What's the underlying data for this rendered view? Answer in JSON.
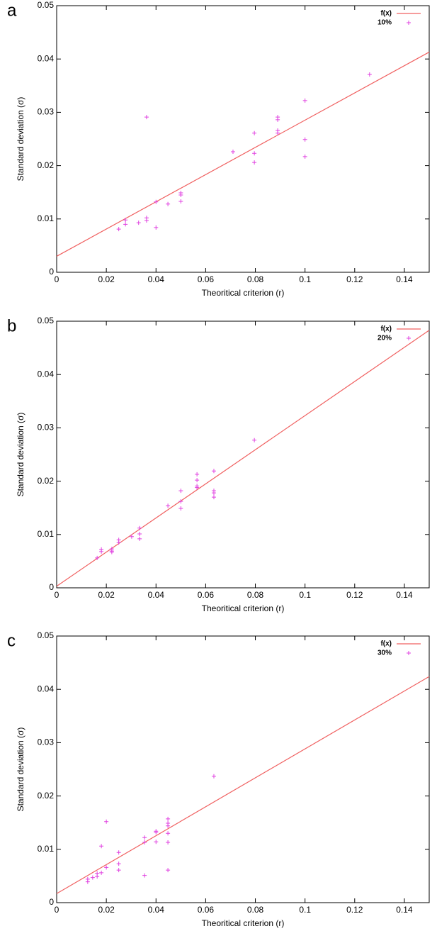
{
  "chart_data": [
    {
      "type": "scatter",
      "panel_label": "a",
      "x_label": "Theoritical criterion (r)",
      "y_label": "Standard deviation (σ)",
      "xlim": [
        0,
        0.15
      ],
      "ylim": [
        0,
        0.05
      ],
      "xticks": [
        0,
        0.02,
        0.04,
        0.06,
        0.08,
        0.1,
        0.12,
        0.14
      ],
      "yticks": [
        0,
        0.01,
        0.02,
        0.03,
        0.04,
        0.05
      ],
      "legend": "top-right",
      "series": [
        {
          "name": "f(x)",
          "color": "#f06060",
          "mode": "line",
          "x": [
            0,
            0.15
          ],
          "values": [
            0.003,
            0.0413
          ]
        },
        {
          "name": "10%",
          "color": "#e040e0",
          "mode": "markers",
          "x": [
            0.025,
            0.0277,
            0.0277,
            0.033,
            0.0362,
            0.0362,
            0.0362,
            0.04,
            0.04,
            0.0448,
            0.05,
            0.05,
            0.05,
            0.071,
            0.0796,
            0.0796,
            0.0796,
            0.089,
            0.089,
            0.089,
            0.089,
            0.1,
            0.1,
            0.1,
            0.126
          ],
          "values": [
            0.0081,
            0.009,
            0.0098,
            0.0093,
            0.0102,
            0.0097,
            0.0291,
            0.0132,
            0.0084,
            0.0128,
            0.0149,
            0.0145,
            0.0133,
            0.0226,
            0.0261,
            0.0223,
            0.0206,
            0.0291,
            0.0286,
            0.0266,
            0.0261,
            0.0322,
            0.0249,
            0.0217,
            0.0371
          ]
        }
      ]
    },
    {
      "type": "scatter",
      "panel_label": "b",
      "x_label": "Theoritical criterion (r)",
      "y_label": "Standard deviation (σ)",
      "xlim": [
        0,
        0.15
      ],
      "ylim": [
        0,
        0.05
      ],
      "xticks": [
        0,
        0.02,
        0.04,
        0.06,
        0.08,
        0.1,
        0.12,
        0.14
      ],
      "yticks": [
        0,
        0.01,
        0.02,
        0.03,
        0.04,
        0.05
      ],
      "legend": "top-right",
      "series": [
        {
          "name": "f(x)",
          "color": "#f06060",
          "mode": "line",
          "x": [
            0,
            0.15
          ],
          "values": [
            0.0003,
            0.0483
          ]
        },
        {
          "name": "20%",
          "color": "#e040e0",
          "mode": "markers",
          "x": [
            0.0163,
            0.018,
            0.018,
            0.0222,
            0.0222,
            0.0222,
            0.025,
            0.025,
            0.0302,
            0.0334,
            0.0334,
            0.0334,
            0.0448,
            0.05,
            0.05,
            0.05,
            0.0565,
            0.0565,
            0.0565,
            0.0565,
            0.0633,
            0.0633,
            0.0633,
            0.0633,
            0.0796
          ],
          "values": [
            0.0056,
            0.0072,
            0.0068,
            0.0073,
            0.0069,
            0.0067,
            0.009,
            0.0085,
            0.0096,
            0.0112,
            0.0101,
            0.0092,
            0.0154,
            0.0182,
            0.0162,
            0.0149,
            0.0213,
            0.0202,
            0.0191,
            0.0188,
            0.0219,
            0.0182,
            0.0178,
            0.017,
            0.0277
          ]
        }
      ]
    },
    {
      "type": "scatter",
      "panel_label": "c",
      "x_label": "Theoritical criterion (r)",
      "y_label": "Standard deviation (σ)",
      "xlim": [
        0,
        0.15
      ],
      "ylim": [
        0,
        0.05
      ],
      "xticks": [
        0,
        0.02,
        0.04,
        0.06,
        0.08,
        0.1,
        0.12,
        0.14
      ],
      "yticks": [
        0,
        0.01,
        0.02,
        0.03,
        0.04,
        0.05
      ],
      "legend": "top-right",
      "series": [
        {
          "name": "f(x)",
          "color": "#f06060",
          "mode": "line",
          "x": [
            0,
            0.15
          ],
          "values": [
            0.0017,
            0.0424
          ]
        },
        {
          "name": "30%",
          "color": "#e040e0",
          "mode": "markers",
          "x": [
            0.0125,
            0.0125,
            0.0145,
            0.0163,
            0.0163,
            0.018,
            0.018,
            0.02,
            0.02,
            0.025,
            0.025,
            0.025,
            0.0354,
            0.0354,
            0.0354,
            0.04,
            0.04,
            0.04,
            0.0448,
            0.0448,
            0.0448,
            0.0448,
            0.0448,
            0.0448,
            0.0633
          ],
          "values": [
            0.0039,
            0.0044,
            0.0047,
            0.0049,
            0.0055,
            0.0056,
            0.0106,
            0.0066,
            0.0152,
            0.0094,
            0.0073,
            0.0061,
            0.0122,
            0.0113,
            0.0051,
            0.0134,
            0.0132,
            0.0114,
            0.0157,
            0.0149,
            0.0144,
            0.013,
            0.0113,
            0.0061,
            0.0237
          ]
        }
      ]
    }
  ]
}
